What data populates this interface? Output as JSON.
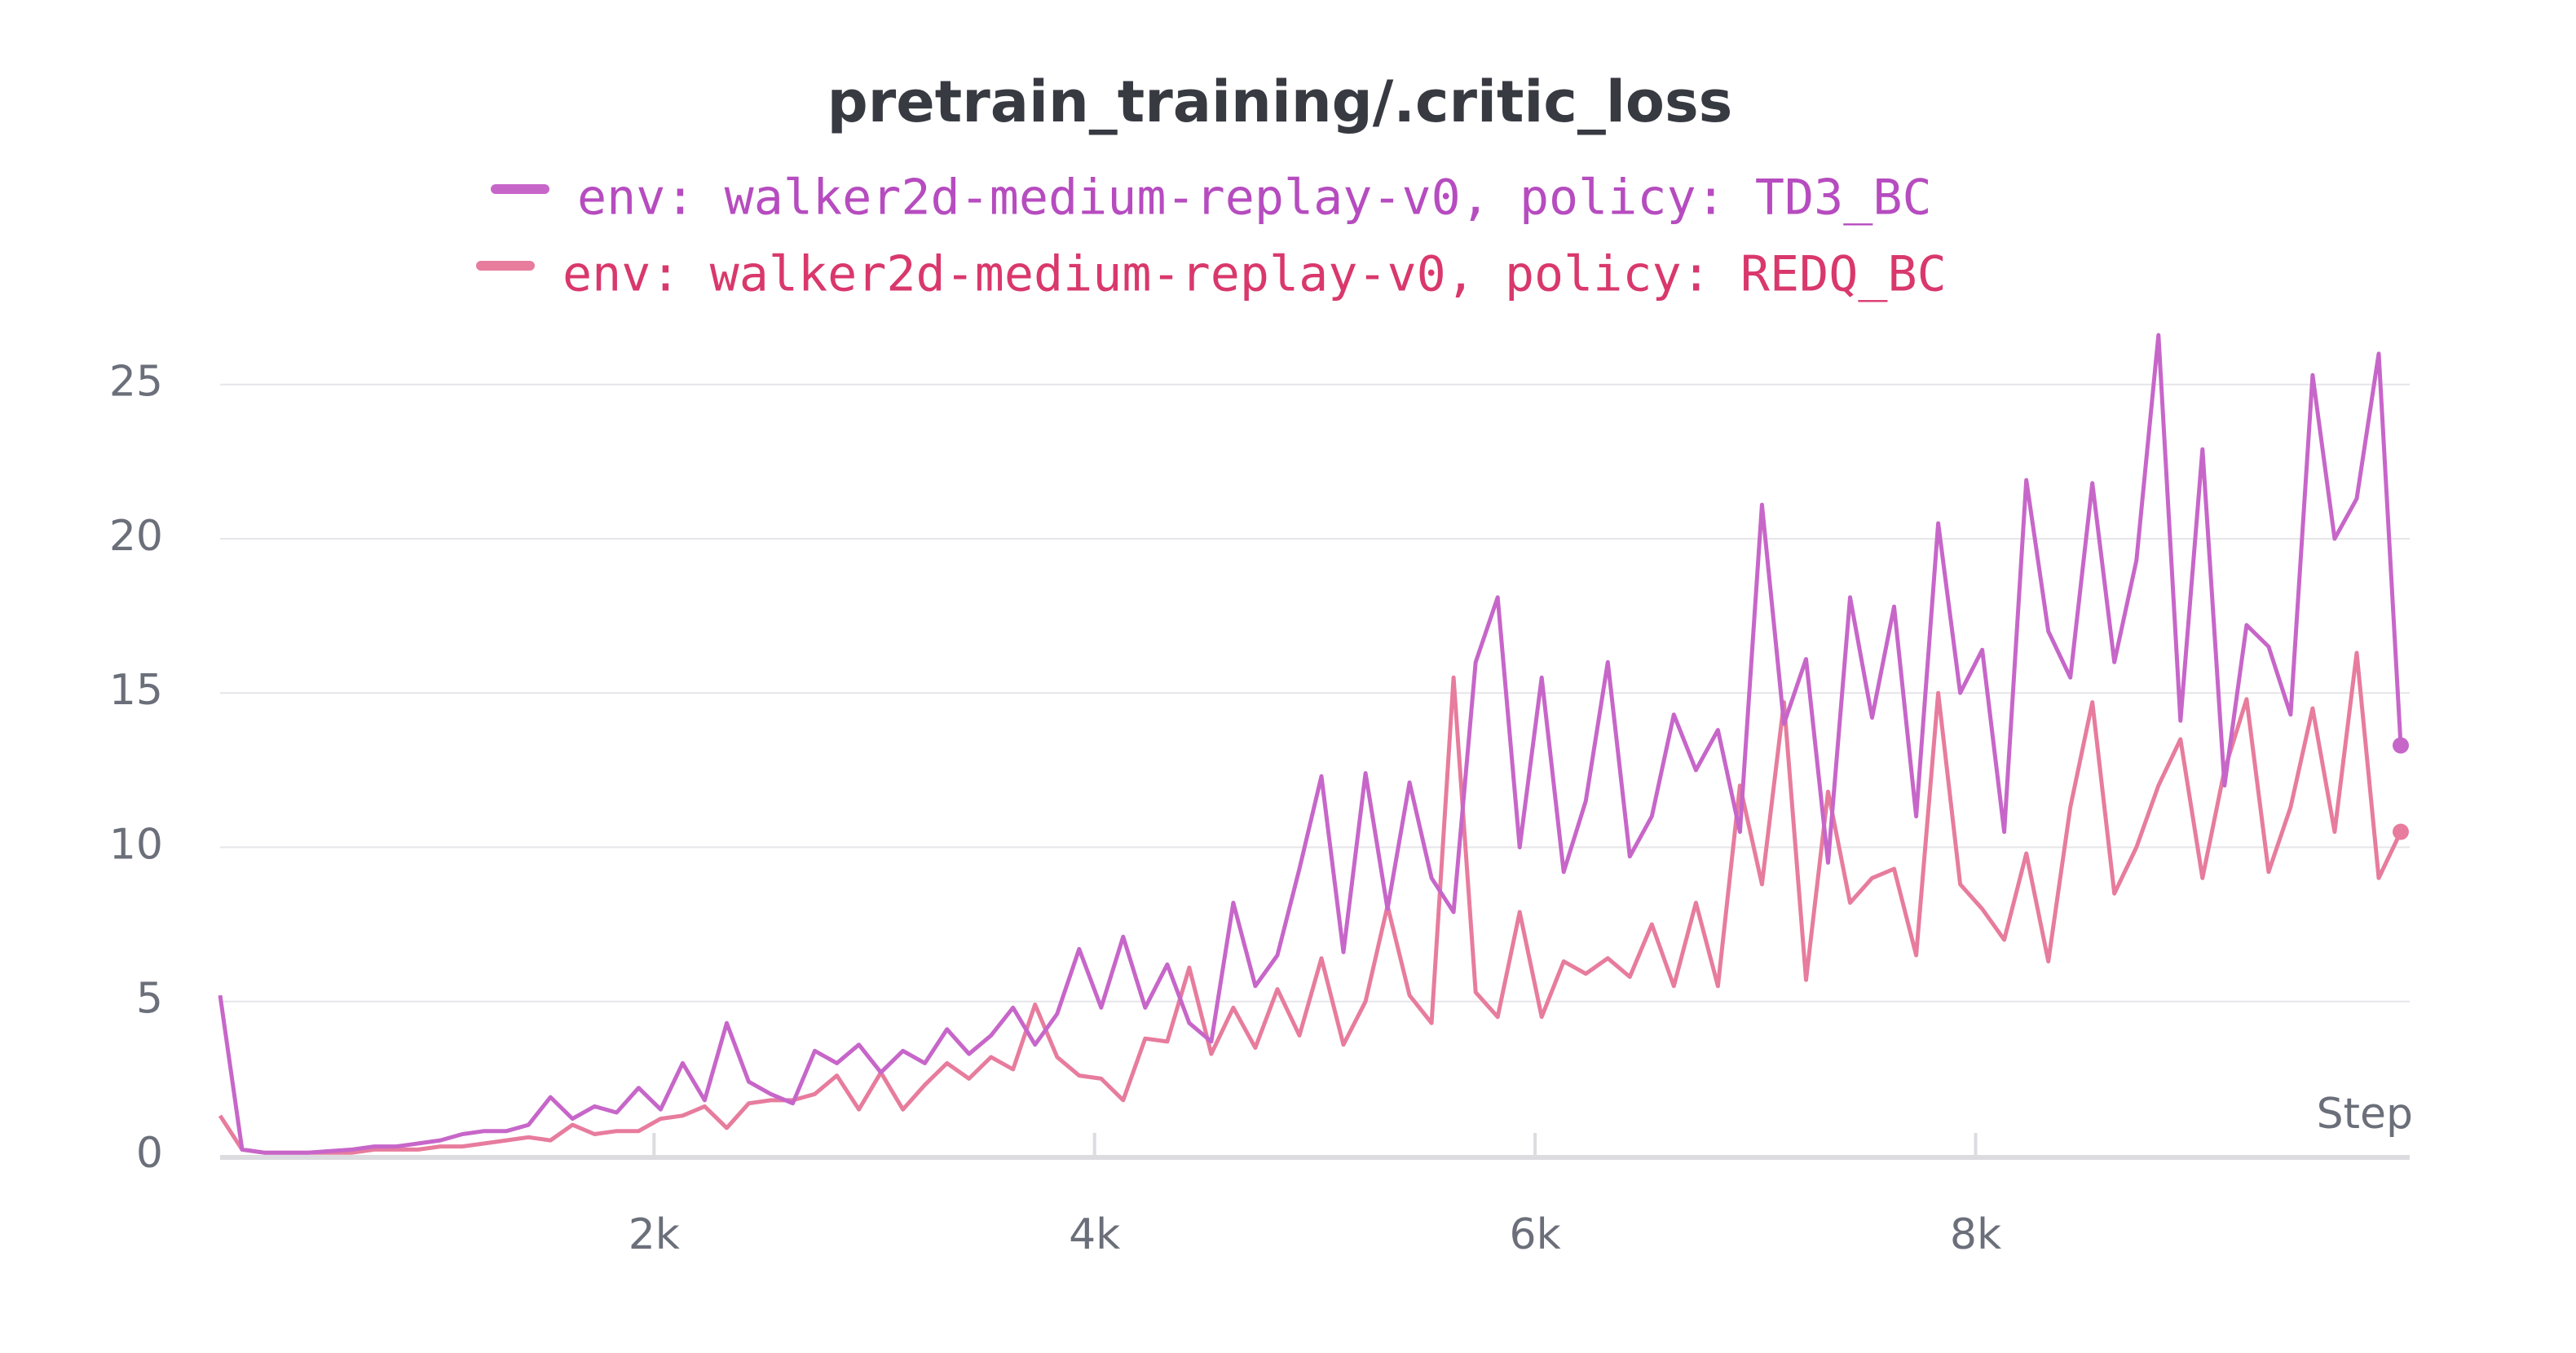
{
  "chart_data": {
    "type": "line",
    "title": "pretrain_training/.critic_loss",
    "x_label": "Step",
    "x": [
      30,
      130,
      230,
      330,
      430,
      530,
      630,
      730,
      830,
      930,
      1030,
      1130,
      1230,
      1330,
      1430,
      1530,
      1630,
      1730,
      1830,
      1930,
      2030,
      2130,
      2230,
      2330,
      2430,
      2530,
      2630,
      2730,
      2830,
      2930,
      3030,
      3130,
      3230,
      3330,
      3430,
      3530,
      3630,
      3730,
      3830,
      3930,
      4030,
      4130,
      4230,
      4330,
      4430,
      4530,
      4630,
      4730,
      4830,
      4930,
      5030,
      5130,
      5230,
      5330,
      5430,
      5530,
      5630,
      5730,
      5830,
      5930,
      6030,
      6130,
      6230,
      6330,
      6430,
      6530,
      6630,
      6730,
      6830,
      6930,
      7030,
      7130,
      7230,
      7330,
      7430,
      7530,
      7630,
      7730,
      7830,
      7930,
      8030,
      8130,
      8230,
      8330,
      8430,
      8530,
      8630,
      8730,
      8830,
      8930,
      9030,
      9130,
      9230,
      9330,
      9430,
      9530,
      9630,
      9730,
      9830,
      9930
    ],
    "series": [
      {
        "name": "env: walker2d-medium-replay-v0, policy: TD3_BC",
        "color": "#c766c9",
        "legend_color": "#b64cbf",
        "values": [
          5.2,
          0.2,
          0.1,
          0.1,
          0.1,
          0.15,
          0.2,
          0.3,
          0.3,
          0.4,
          0.5,
          0.7,
          0.8,
          0.8,
          1.0,
          1.9,
          1.2,
          1.6,
          1.4,
          2.2,
          1.5,
          3.0,
          1.8,
          4.3,
          2.4,
          2.0,
          1.7,
          3.4,
          3.0,
          3.6,
          2.7,
          3.4,
          3.0,
          4.1,
          3.3,
          3.9,
          4.8,
          3.6,
          4.6,
          6.7,
          4.8,
          7.1,
          4.8,
          6.2,
          4.3,
          3.7,
          8.2,
          5.5,
          6.5,
          9.3,
          12.3,
          6.6,
          12.4,
          8.0,
          12.1,
          9.0,
          7.9,
          16.0,
          18.1,
          10.0,
          15.5,
          9.2,
          11.5,
          16.0,
          9.7,
          11.0,
          14.3,
          12.5,
          13.8,
          10.5,
          21.1,
          14.0,
          16.1,
          9.5,
          18.1,
          14.2,
          17.8,
          11.0,
          20.5,
          15.0,
          16.4,
          10.5,
          21.9,
          17.0,
          15.5,
          21.8,
          16.0,
          19.3,
          26.6,
          14.1,
          22.9,
          12.0,
          17.2,
          16.5,
          14.3,
          25.3,
          20.0,
          21.3,
          26.0,
          13.3
        ]
      },
      {
        "name": "env: walker2d-medium-replay-v0, policy: REDQ_BC",
        "color": "#e77c9d",
        "legend_color": "#d9386c",
        "values": [
          1.3,
          0.2,
          0.1,
          0.1,
          0.1,
          0.1,
          0.1,
          0.2,
          0.2,
          0.2,
          0.3,
          0.3,
          0.4,
          0.5,
          0.6,
          0.5,
          1.0,
          0.7,
          0.8,
          0.8,
          1.2,
          1.3,
          1.6,
          0.9,
          1.7,
          1.8,
          1.8,
          2.0,
          2.6,
          1.5,
          2.7,
          1.5,
          2.3,
          3.0,
          2.5,
          3.2,
          2.8,
          4.9,
          3.2,
          2.6,
          2.5,
          1.8,
          3.8,
          3.7,
          6.1,
          3.3,
          4.8,
          3.5,
          5.4,
          3.9,
          6.4,
          3.6,
          5.0,
          8.1,
          5.2,
          4.3,
          15.5,
          5.3,
          4.5,
          7.9,
          4.5,
          6.3,
          5.9,
          6.4,
          5.8,
          7.5,
          5.5,
          8.2,
          5.5,
          12.0,
          8.8,
          14.7,
          5.7,
          11.8,
          8.2,
          9.0,
          9.3,
          6.5,
          15.0,
          8.8,
          8.0,
          7.0,
          9.8,
          6.3,
          11.3,
          14.7,
          8.5,
          10.0,
          12.0,
          13.5,
          9.0,
          12.5,
          14.8,
          9.2,
          11.3,
          14.5,
          10.5,
          16.3,
          9.0,
          10.5
        ]
      }
    ],
    "xlim": [
      30,
      9930
    ],
    "xticks": [
      {
        "value": 2000,
        "label": "2k"
      },
      {
        "value": 4000,
        "label": "4k"
      },
      {
        "value": 6000,
        "label": "6k"
      },
      {
        "value": 8000,
        "label": "8k"
      }
    ],
    "ylim": [
      0,
      27
    ],
    "yticks": [
      0,
      5,
      10,
      15,
      20,
      25
    ],
    "grid": true
  }
}
